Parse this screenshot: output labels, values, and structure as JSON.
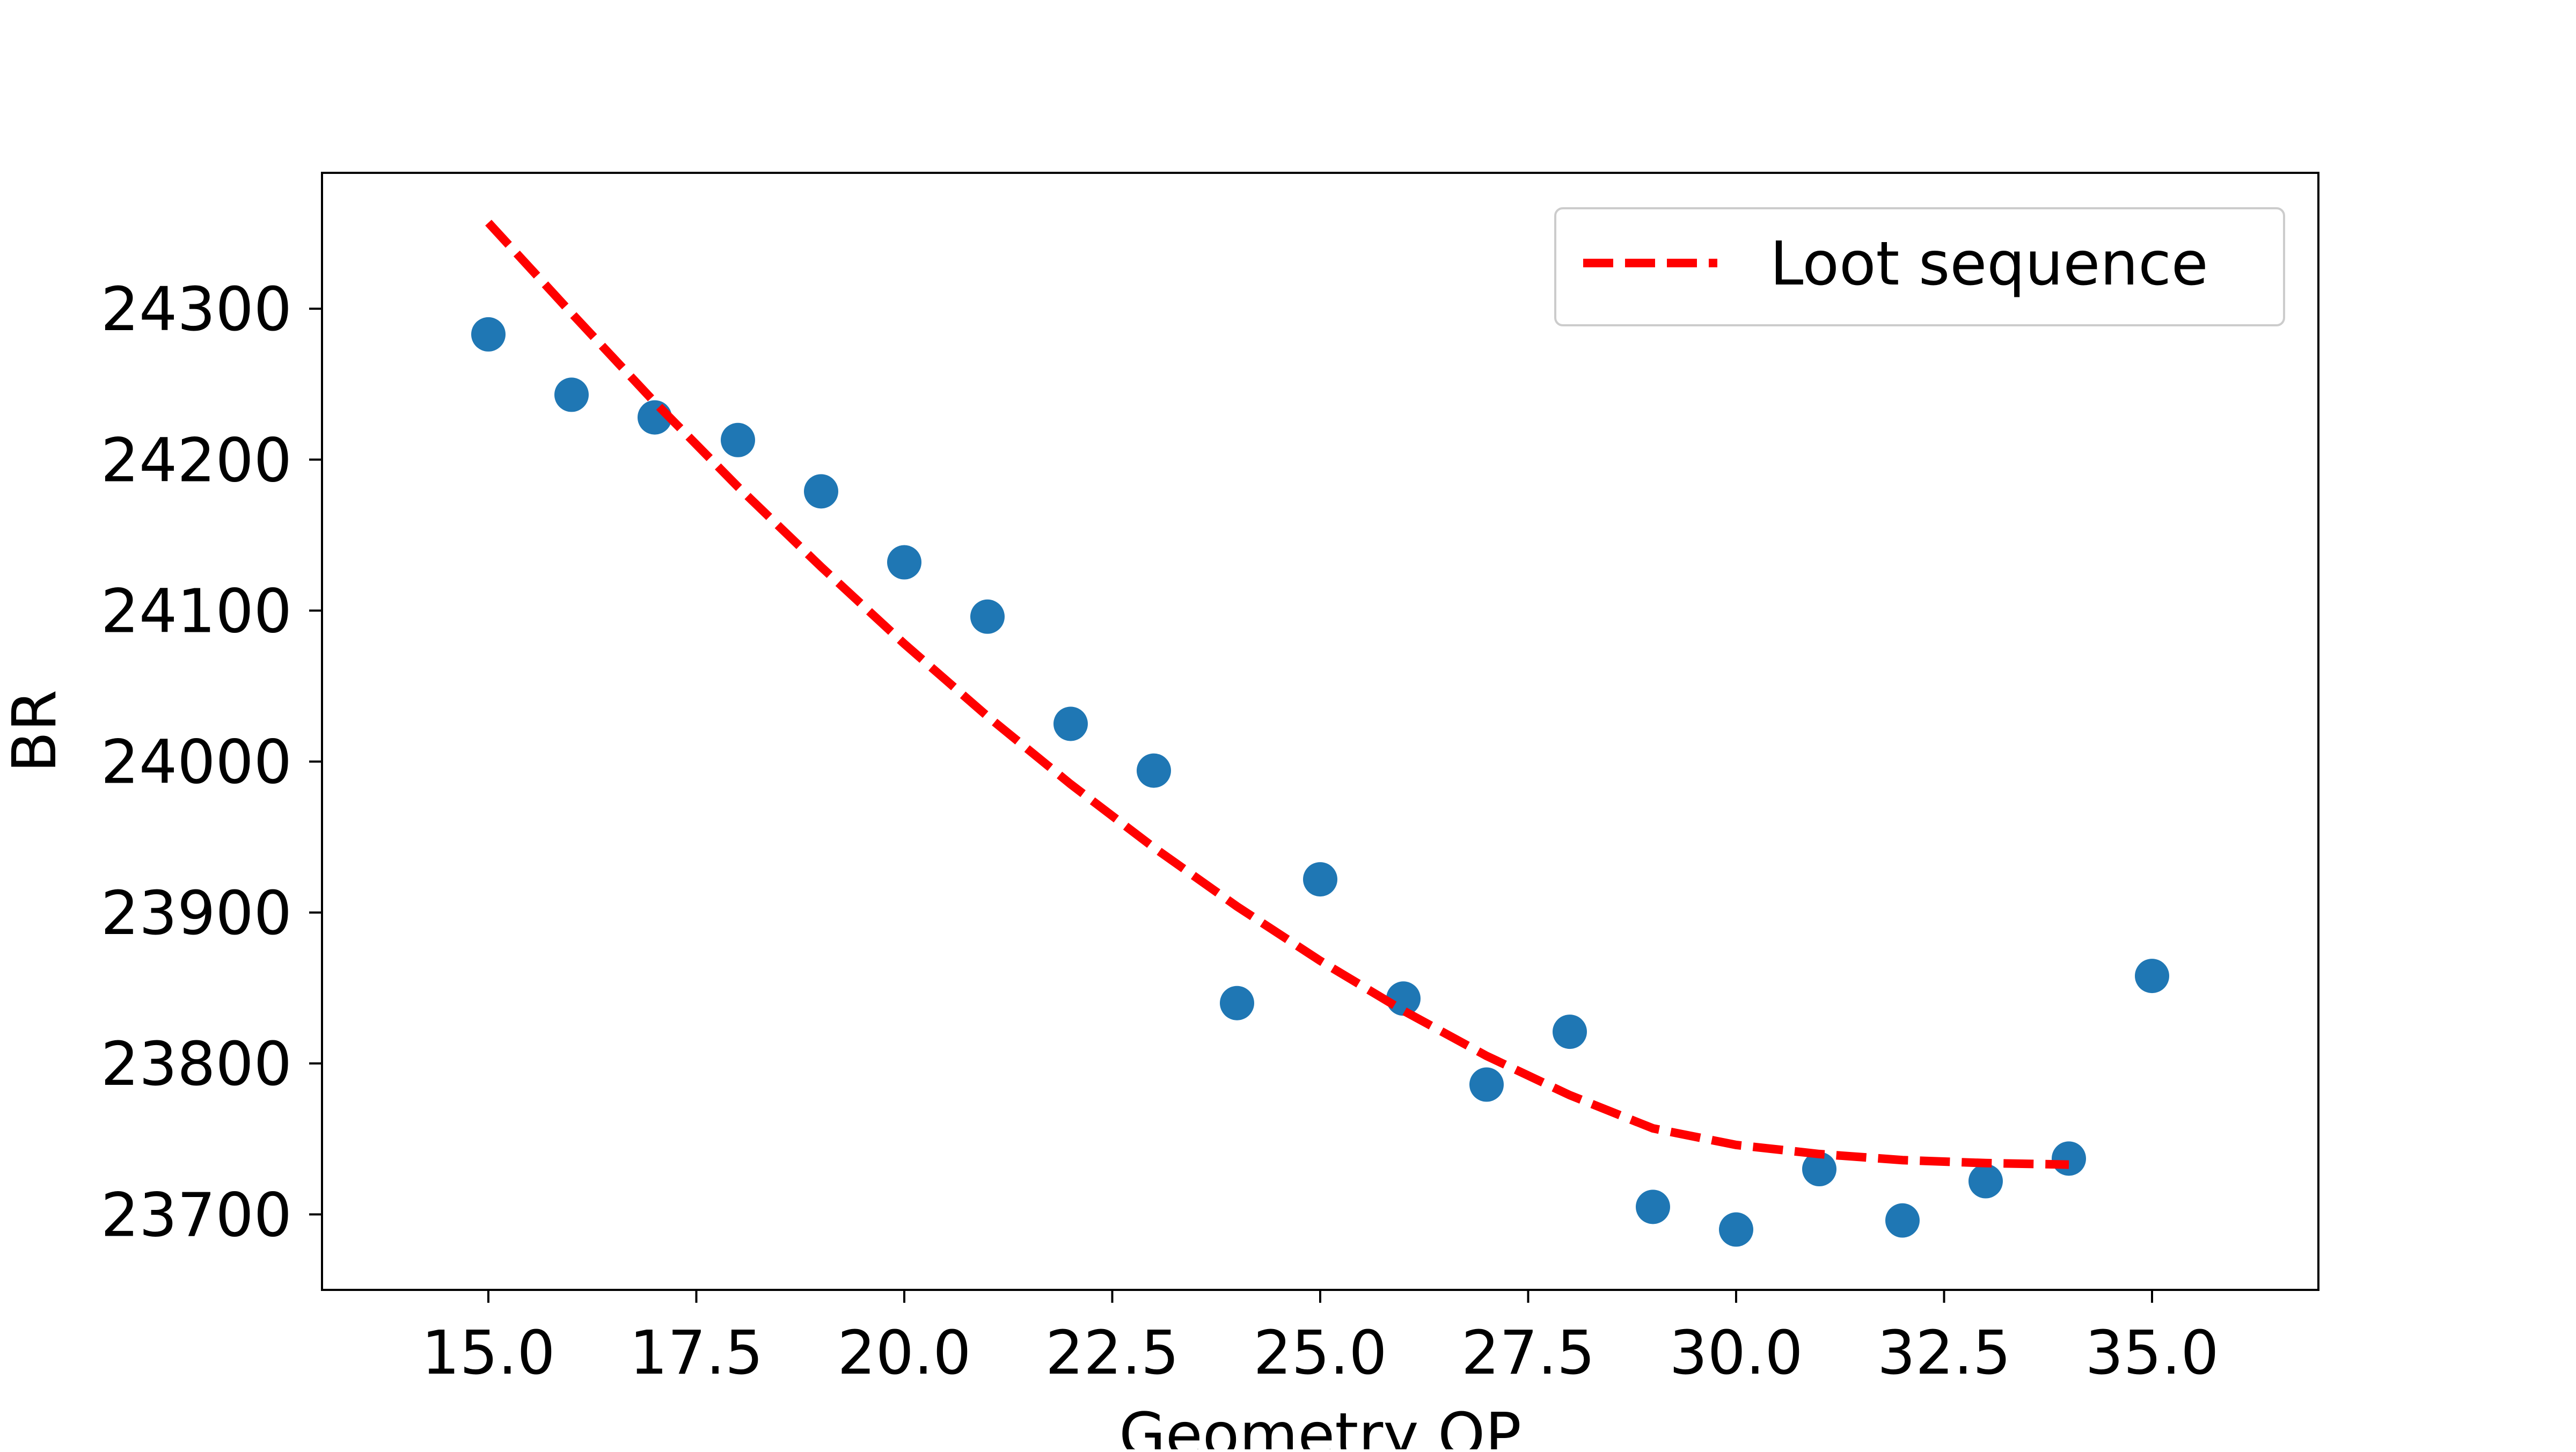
{
  "chart_data": {
    "type": "scatter",
    "title": "",
    "xlabel": "Geometry OP",
    "ylabel": "BR",
    "xlim": [
      13.0,
      37.0
    ],
    "ylim": [
      23650,
      24390
    ],
    "grid": false,
    "legend_position": "top-right",
    "x_ticks": [
      15.0,
      17.5,
      20.0,
      22.5,
      25.0,
      27.5,
      30.0,
      32.5,
      35.0
    ],
    "x_tick_labels": [
      "15.0",
      "17.5",
      "20.0",
      "22.5",
      "25.0",
      "27.5",
      "30.0",
      "32.5",
      "35.0"
    ],
    "y_ticks": [
      23700,
      23800,
      23900,
      24000,
      24100,
      24200,
      24300
    ],
    "y_tick_labels": [
      "23700",
      "23800",
      "23900",
      "24000",
      "24100",
      "24200",
      "24300"
    ],
    "series": [
      {
        "type": "scatter",
        "color": "#1f77b4",
        "x": [
          15,
          16,
          17,
          18,
          19,
          20,
          21,
          22,
          23,
          24,
          25,
          26,
          27,
          28,
          29,
          30,
          31,
          32,
          33,
          34,
          35
        ],
        "y": [
          24283,
          24243,
          24228,
          24213,
          24179,
          24132,
          24096,
          24025,
          23994,
          23840,
          23922,
          23843,
          23786,
          23821,
          23705,
          23690,
          23730,
          23696,
          23722,
          23737,
          23858
        ]
      },
      {
        "type": "line",
        "name": "Loot sequence",
        "color": "#ff0000",
        "dashed": true,
        "x": [
          15,
          16,
          17,
          18,
          19,
          20,
          21,
          22,
          23,
          24,
          25,
          26,
          27,
          28,
          29,
          30,
          31,
          32,
          33,
          34
        ],
        "y": [
          24357,
          24297,
          24238,
          24182,
          24129,
          24078,
          24030,
          23985,
          23943,
          23904,
          23868,
          23835,
          23805,
          23779,
          23757,
          23746,
          23740,
          23736,
          23734,
          23733
        ]
      }
    ]
  }
}
